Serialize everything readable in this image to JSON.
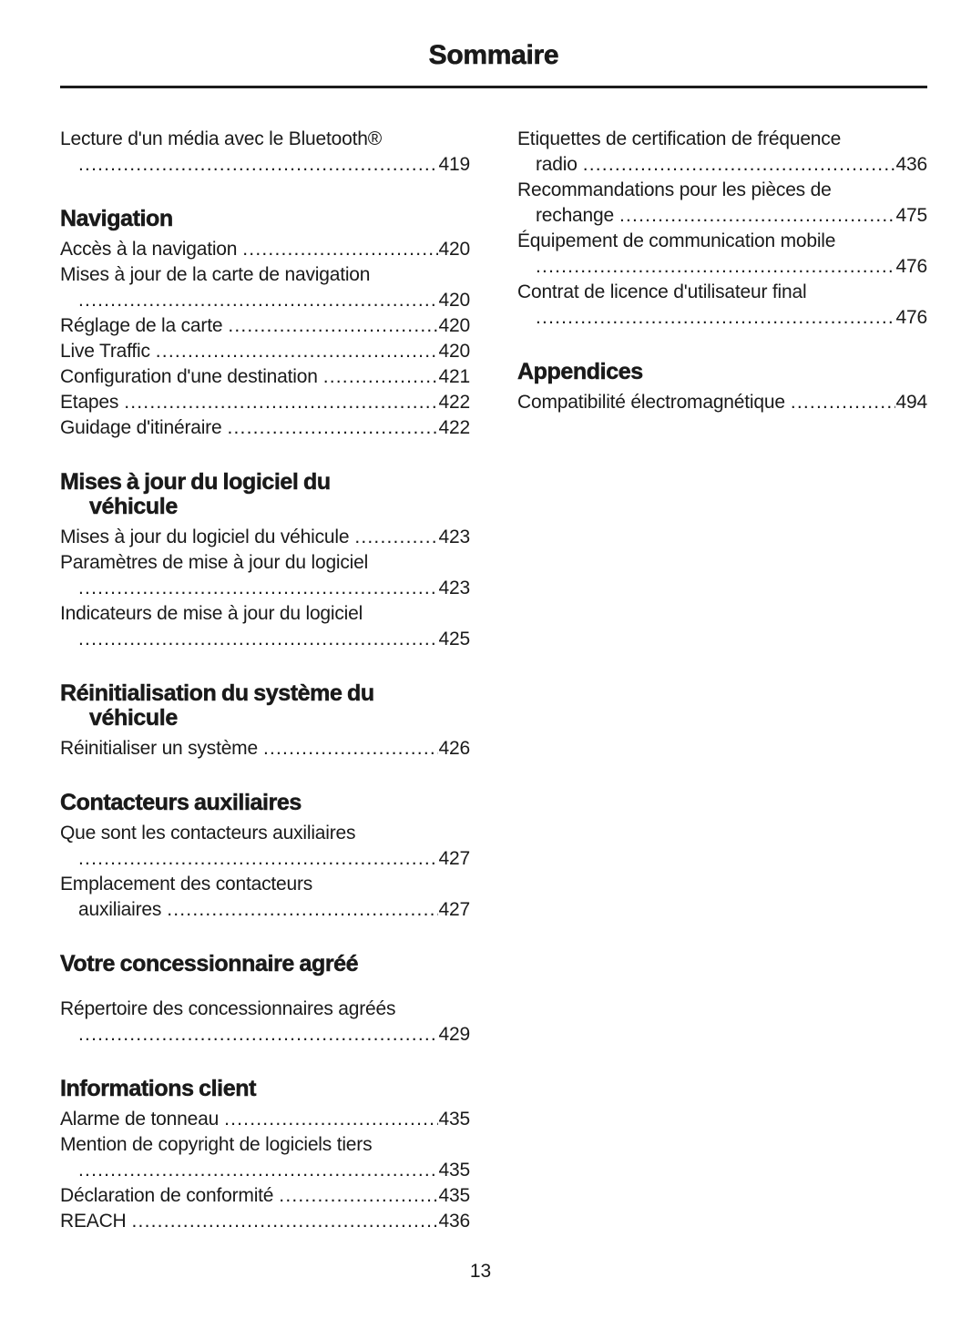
{
  "page": {
    "title": "Sommaire",
    "footer_page_number": "13",
    "text_color": "#1a1a1a",
    "background_color": "#ffffff"
  },
  "columns": [
    {
      "blocks": [
        {
          "type": "entries",
          "items": [
            {
              "lines": [
                {
                  "text": "Lecture d'un média avec le Bluetooth®",
                  "indent": false,
                  "page": null
                },
                {
                  "text": "",
                  "indent": true,
                  "page": "419"
                }
              ]
            }
          ]
        },
        {
          "type": "heading",
          "lines": [
            "Navigation"
          ]
        },
        {
          "type": "entries",
          "items": [
            {
              "lines": [
                {
                  "text": "Accès à la navigation",
                  "indent": false,
                  "page": "420"
                }
              ]
            },
            {
              "lines": [
                {
                  "text": "Mises à jour de la carte de navigation",
                  "indent": false,
                  "page": null
                },
                {
                  "text": "",
                  "indent": true,
                  "page": "420"
                }
              ]
            },
            {
              "lines": [
                {
                  "text": "Réglage de la carte",
                  "indent": false,
                  "page": "420"
                }
              ]
            },
            {
              "lines": [
                {
                  "text": "Live Traffic",
                  "indent": false,
                  "page": "420"
                }
              ]
            },
            {
              "lines": [
                {
                  "text": "Configuration d'une destination",
                  "indent": false,
                  "page": "421"
                }
              ]
            },
            {
              "lines": [
                {
                  "text": "Etapes",
                  "indent": false,
                  "page": "422"
                }
              ]
            },
            {
              "lines": [
                {
                  "text": "Guidage d'itinéraire",
                  "indent": false,
                  "page": "422"
                }
              ]
            }
          ]
        },
        {
          "type": "heading",
          "lines": [
            "Mises à jour du logiciel du",
            "véhicule"
          ]
        },
        {
          "type": "entries",
          "items": [
            {
              "lines": [
                {
                  "text": "Mises à jour du logiciel du véhicule",
                  "indent": false,
                  "page": "423"
                }
              ]
            },
            {
              "lines": [
                {
                  "text": "Paramètres de mise à jour du logiciel",
                  "indent": false,
                  "page": null
                },
                {
                  "text": "",
                  "indent": true,
                  "page": "423"
                }
              ]
            },
            {
              "lines": [
                {
                  "text": "Indicateurs de mise à jour du logiciel",
                  "indent": false,
                  "page": null
                },
                {
                  "text": "",
                  "indent": true,
                  "page": "425"
                }
              ]
            }
          ]
        },
        {
          "type": "heading",
          "lines": [
            "Réinitialisation du système du",
            "véhicule"
          ]
        },
        {
          "type": "entries",
          "items": [
            {
              "lines": [
                {
                  "text": "Réinitialiser un système",
                  "indent": false,
                  "page": "426"
                }
              ]
            }
          ]
        },
        {
          "type": "heading",
          "lines": [
            "Contacteurs auxiliaires"
          ]
        },
        {
          "type": "entries",
          "items": [
            {
              "lines": [
                {
                  "text": "Que sont les contacteurs auxiliaires",
                  "indent": false,
                  "page": null
                },
                {
                  "text": "",
                  "indent": true,
                  "page": "427"
                }
              ]
            },
            {
              "lines": [
                {
                  "text": "Emplacement des contacteurs",
                  "indent": false,
                  "page": null
                },
                {
                  "text": "auxiliaires",
                  "indent": true,
                  "page": "427"
                }
              ]
            }
          ]
        },
        {
          "type": "heading",
          "lines": [
            "Votre concessionnaire agréé"
          ]
        },
        {
          "type": "entries",
          "extra_gap": true,
          "items": [
            {
              "lines": [
                {
                  "text": "Répertoire des concessionnaires agréés",
                  "indent": false,
                  "page": null
                },
                {
                  "text": "",
                  "indent": true,
                  "page": "429"
                }
              ]
            }
          ]
        },
        {
          "type": "heading",
          "lines": [
            "Informations client"
          ]
        },
        {
          "type": "entries",
          "items": [
            {
              "lines": [
                {
                  "text": "Alarme de tonneau",
                  "indent": false,
                  "page": "435"
                }
              ]
            },
            {
              "lines": [
                {
                  "text": "Mention de copyright de logiciels tiers",
                  "indent": false,
                  "page": null
                },
                {
                  "text": "",
                  "indent": true,
                  "page": "435"
                }
              ]
            },
            {
              "lines": [
                {
                  "text": "Déclaration de conformité",
                  "indent": false,
                  "page": "435"
                }
              ]
            },
            {
              "lines": [
                {
                  "text": "REACH",
                  "indent": false,
                  "page": "436"
                }
              ]
            }
          ]
        }
      ]
    },
    {
      "blocks": [
        {
          "type": "entries",
          "items": [
            {
              "lines": [
                {
                  "text": "Etiquettes de certification de fréquence",
                  "indent": false,
                  "page": null
                },
                {
                  "text": "radio",
                  "indent": true,
                  "page": "436"
                }
              ]
            },
            {
              "lines": [
                {
                  "text": "Recommandations pour les pièces de",
                  "indent": false,
                  "page": null
                },
                {
                  "text": "rechange",
                  "indent": true,
                  "page": "475"
                }
              ]
            },
            {
              "lines": [
                {
                  "text": "Équipement de communication mobile",
                  "indent": false,
                  "page": null
                },
                {
                  "text": "",
                  "indent": true,
                  "page": "476"
                }
              ]
            },
            {
              "lines": [
                {
                  "text": "Contrat de licence d'utilisateur final",
                  "indent": false,
                  "page": null
                },
                {
                  "text": "",
                  "indent": true,
                  "page": "476"
                }
              ]
            }
          ]
        },
        {
          "type": "heading",
          "lines": [
            "Appendices"
          ]
        },
        {
          "type": "entries",
          "items": [
            {
              "lines": [
                {
                  "text": "Compatibilité électromagnétique",
                  "indent": false,
                  "page": "494"
                }
              ]
            }
          ]
        }
      ]
    }
  ]
}
